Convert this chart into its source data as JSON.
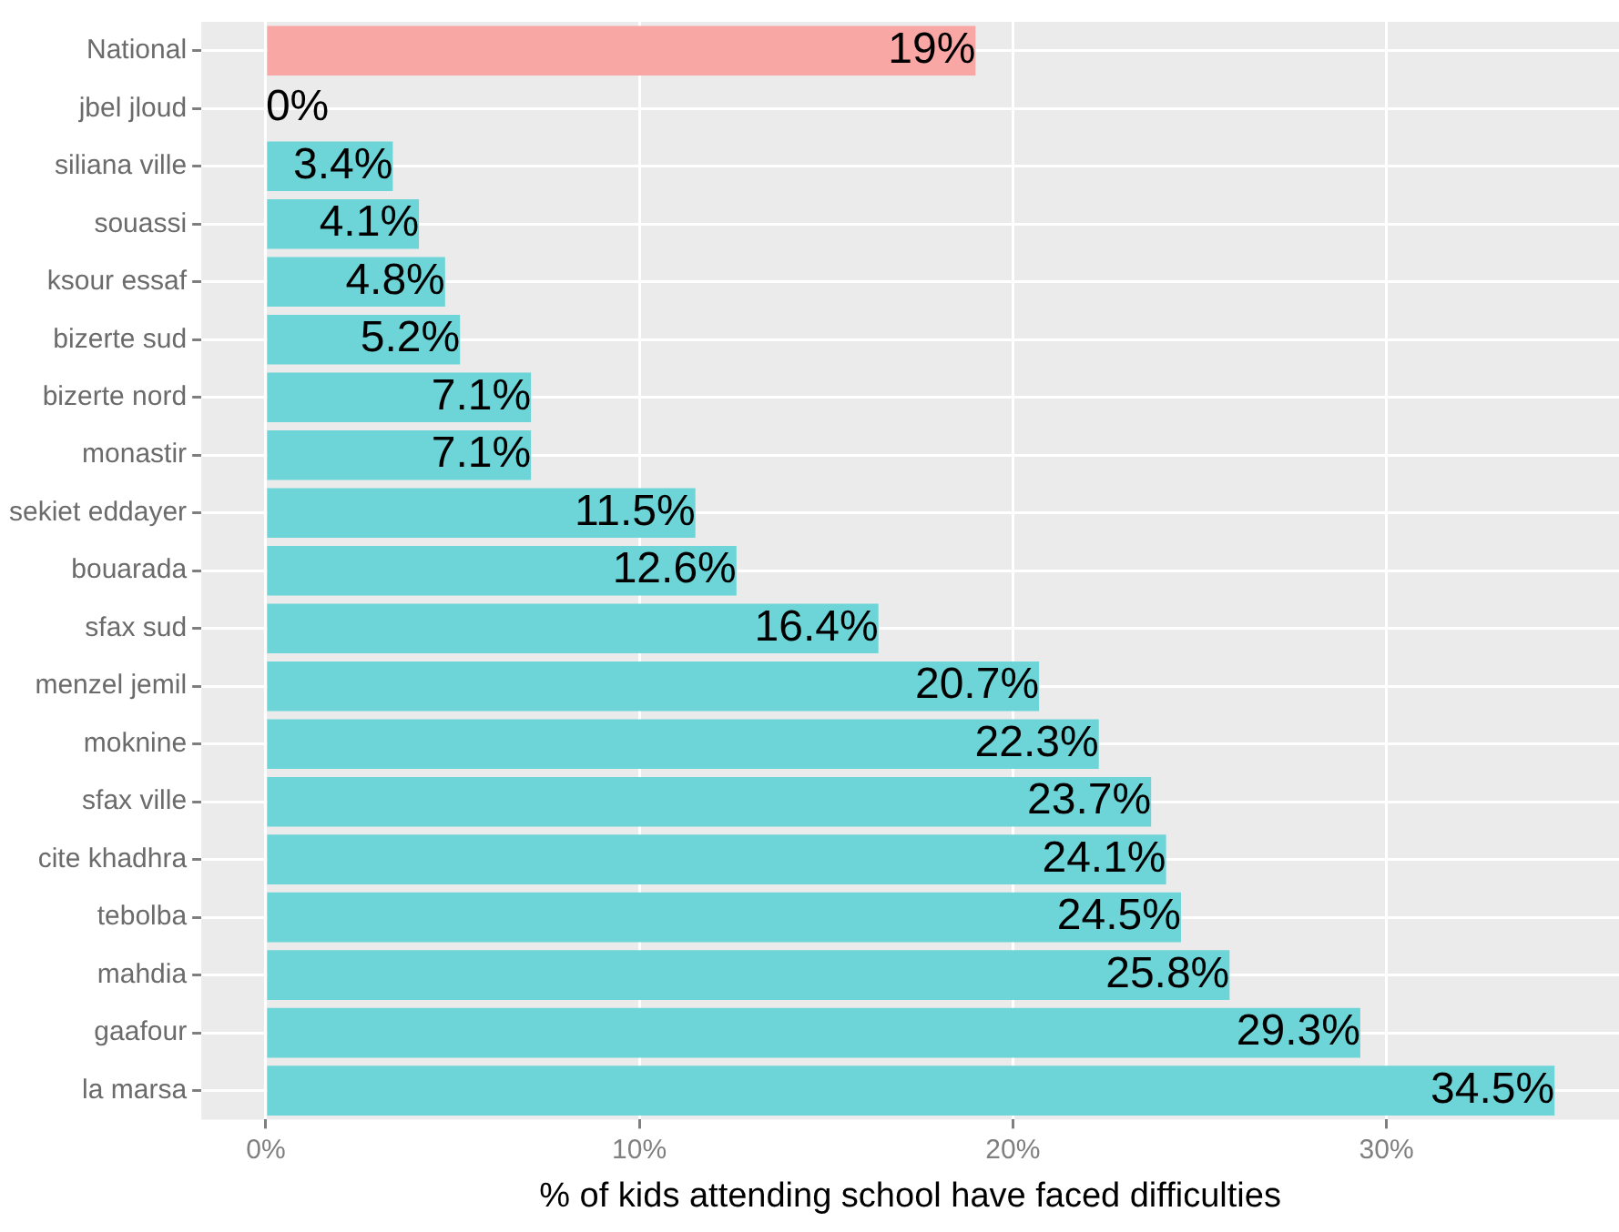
{
  "chart_data": {
    "type": "bar",
    "orientation": "horizontal",
    "xlabel": "% of kids attending school have faced difficulties",
    "categories": [
      "National",
      "jbel jloud",
      "siliana ville",
      "souassi",
      "ksour essaf",
      "bizerte sud",
      "bizerte nord",
      "monastir",
      "sekiet eddayer",
      "bouarada",
      "sfax sud",
      "menzel jemil",
      "moknine",
      "sfax ville",
      "cite khadhra",
      "tebolba",
      "mahdia",
      "gaafour",
      "la marsa"
    ],
    "values": [
      19,
      0,
      3.4,
      4.1,
      4.8,
      5.2,
      7.1,
      7.1,
      11.5,
      12.6,
      16.4,
      20.7,
      22.3,
      23.7,
      24.1,
      24.5,
      25.8,
      29.3,
      34.5
    ],
    "value_labels": [
      "19%",
      "0%",
      "3.4%",
      "4.1%",
      "4.8%",
      "5.2%",
      "7.1%",
      "7.1%",
      "11.5%",
      "12.6%",
      "16.4%",
      "20.7%",
      "22.3%",
      "23.7%",
      "24.1%",
      "24.5%",
      "25.8%",
      "29.3%",
      "34.5%"
    ],
    "colors": [
      "#f8a7a5",
      "#6dd5d8",
      "#6dd5d8",
      "#6dd5d8",
      "#6dd5d8",
      "#6dd5d8",
      "#6dd5d8",
      "#6dd5d8",
      "#6dd5d8",
      "#6dd5d8",
      "#6dd5d8",
      "#6dd5d8",
      "#6dd5d8",
      "#6dd5d8",
      "#6dd5d8",
      "#6dd5d8",
      "#6dd5d8",
      "#6dd5d8",
      "#6dd5d8"
    ],
    "xlim": [
      -1.725,
      36.225
    ],
    "xticks": [
      {
        "value": 0,
        "label": "0%"
      },
      {
        "value": 10,
        "label": "10%"
      },
      {
        "value": 20,
        "label": "20%"
      },
      {
        "value": 30,
        "label": "30%"
      }
    ],
    "grid": true
  }
}
